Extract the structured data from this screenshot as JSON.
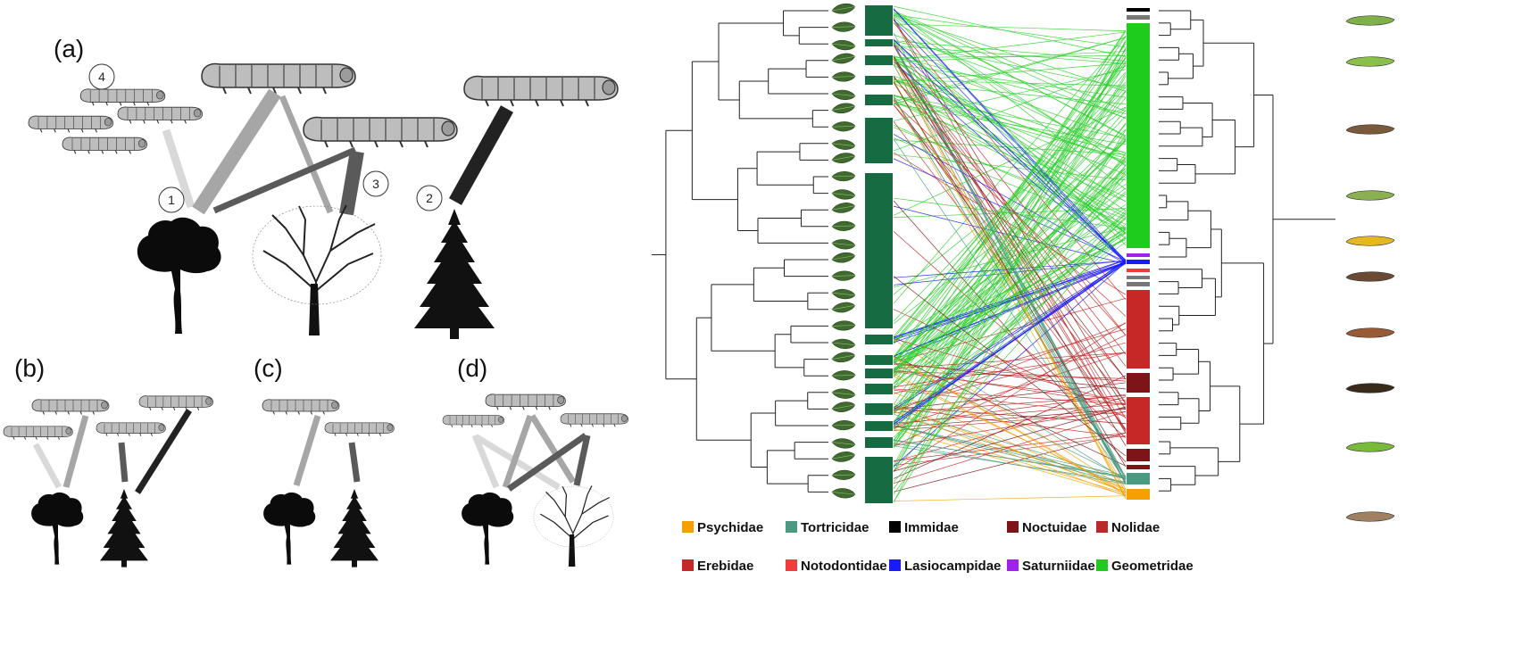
{
  "panel_labels": [
    "(a)",
    "(b)",
    "(c)",
    "(d)"
  ],
  "panel_a_numbers": [
    "4",
    "1",
    "3",
    "2"
  ],
  "families": [
    {
      "name": "Psychidae",
      "color": "#f5a000"
    },
    {
      "name": "Tortricidae",
      "color": "#4a9a82"
    },
    {
      "name": "Immidae",
      "color": "#000000"
    },
    {
      "name": "Noctuidae",
      "color": "#7d1518"
    },
    {
      "name": "Nolidae",
      "color": "#b82a2a"
    },
    {
      "name": "Erebidae",
      "color": "#c62828"
    },
    {
      "name": "Notodontidae",
      "color": "#f03c3c"
    },
    {
      "name": "Lasiocampidae",
      "color": "#1a1aff"
    },
    {
      "name": "Saturniidae",
      "color": "#a020f0"
    },
    {
      "name": "Geometridae",
      "color": "#1ecc1e"
    }
  ],
  "colors": {
    "host_bar": "#176b43",
    "link_light": "#d9d9d9",
    "link_mid": "#a6a6a6",
    "link_dark": "#5a5a5a",
    "link_black": "#222222",
    "leaf": "#3f6b2f",
    "larva_green": "#6aa63a",
    "larva_brown": "#7a5a3a"
  }
}
